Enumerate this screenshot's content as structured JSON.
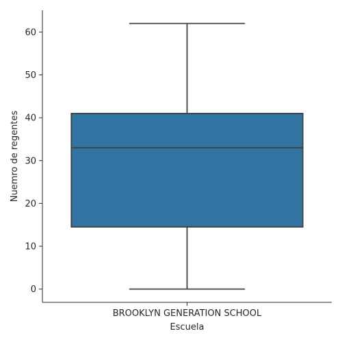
{
  "chart_data": {
    "type": "box",
    "xlabel": "Escuela",
    "ylabel": "Nuemro de regentes",
    "categories": [
      "BROOKLYN GENERATION SCHOOL"
    ],
    "boxes": [
      {
        "category": "BROOKLYN GENERATION SCHOOL",
        "whisker_low": 0,
        "q1": 14.5,
        "median": 33,
        "q3": 41,
        "whisker_high": 62
      }
    ],
    "y_ticks": [
      0,
      10,
      20,
      30,
      40,
      50,
      60
    ],
    "ylim": [
      -3.1,
      65.1
    ],
    "grid": false,
    "colors": {
      "box_fill": "#3274a1",
      "line": "#3f3f3f",
      "axis": "#262626"
    }
  }
}
